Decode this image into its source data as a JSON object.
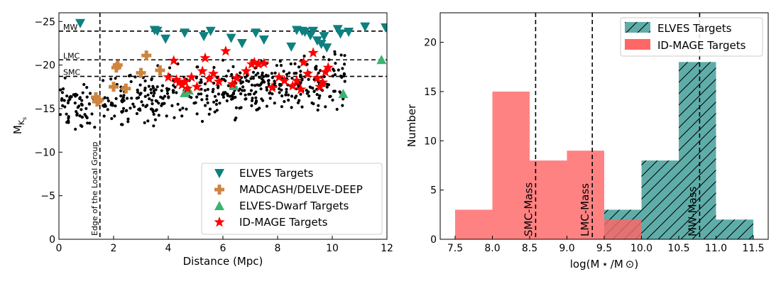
{
  "chart_data": [
    {
      "type": "scatter",
      "xlabel": "Distance (Mpc)",
      "ylabel": "M",
      "ylabel_subscript": "K",
      "ylabel_subsubscript": "s",
      "xlim": [
        0,
        12
      ],
      "ylim": [
        0,
        -26
      ],
      "xticks": [
        0,
        2,
        4,
        6,
        8,
        10,
        12
      ],
      "yticks": [
        0,
        -5,
        -10,
        -15,
        -20,
        -25
      ],
      "xtick_labels": [
        "0",
        "2",
        "4",
        "6",
        "8",
        "10",
        "12"
      ],
      "ytick_labels": [
        "0",
        "−5",
        "−10",
        "−15",
        "−20",
        "−25"
      ],
      "reference_lines": [
        {
          "label": "MW",
          "y": -23.9
        },
        {
          "label": "LMC",
          "y": -20.6
        },
        {
          "label": "SMC",
          "y": -18.7
        }
      ],
      "vline": {
        "x": 1.5,
        "label": "Edge of the Local Group"
      },
      "legend": [
        "ELVES Targets",
        "MADCASH/DELVE-DEEP",
        "ELVES-Dwarf Targets",
        "ID-MAGE Targets"
      ],
      "legend_position": "lower-right",
      "series": [
        {
          "name": "ELVES Targets",
          "marker": "triangle-down",
          "color": "#0e8080",
          "x": [
            0.78,
            3.5,
            3.6,
            3.9,
            4.6,
            5.3,
            5.55,
            6.3,
            6.7,
            7.2,
            7.5,
            8.5,
            8.7,
            8.9,
            9.0,
            9.2,
            9.3,
            9.45,
            9.6,
            9.7,
            9.8,
            10.2,
            10.3,
            10.6,
            11.2,
            11.95
          ],
          "y": [
            -24.8,
            -24.0,
            -23.9,
            -23.0,
            -23.7,
            -23.3,
            -23.9,
            -23.1,
            -22.5,
            -23.7,
            -22.9,
            -22.1,
            -24.0,
            -23.9,
            -23.8,
            -23.4,
            -23.9,
            -22.8,
            -22.4,
            -23.3,
            -22.0,
            -24.1,
            -23.6,
            -23.8,
            -24.4,
            -24.3
          ]
        },
        {
          "name": "MADCASH/DELVE-DEEP",
          "marker": "plus",
          "color": "#cd8540",
          "x": [
            1.35,
            1.4,
            1.45,
            2.0,
            2.1,
            2.15,
            2.45,
            3.0,
            3.2,
            3.7
          ],
          "y": [
            -16.3,
            -15.8,
            -16.0,
            -17.5,
            -19.7,
            -20.0,
            -17.3,
            -19.1,
            -21.1,
            -19.4
          ]
        },
        {
          "name": "ELVES-Dwarf Targets",
          "marker": "triangle-up",
          "color": "#3cb371",
          "x": [
            4.6,
            4.75,
            6.4,
            10.4,
            11.8
          ],
          "y": [
            -16.8,
            -17.1,
            -17.6,
            -16.7,
            -20.6
          ]
        },
        {
          "name": "ID-MAGE Targets",
          "marker": "star",
          "color": "#ff0000",
          "x": [
            4.0,
            4.2,
            4.3,
            4.4,
            4.5,
            4.6,
            4.7,
            4.85,
            5.05,
            5.25,
            5.35,
            5.5,
            5.65,
            5.85,
            6.1,
            6.35,
            6.5,
            6.85,
            7.05,
            7.15,
            7.3,
            7.5,
            7.8,
            8.05,
            8.25,
            8.55,
            8.7,
            8.85,
            8.95,
            9.1,
            9.3,
            9.45,
            9.55,
            9.65,
            9.75,
            9.85
          ],
          "y": [
            -18.6,
            -20.5,
            -18.3,
            -18.0,
            -17.7,
            -18.1,
            -17.3,
            -18.6,
            -17.5,
            -19.3,
            -20.8,
            -18.4,
            -19.0,
            -18.1,
            -21.6,
            -17.8,
            -18.5,
            -19.3,
            -20.1,
            -20.3,
            -20.1,
            -20.2,
            -17.4,
            -18.6,
            -18.2,
            -17.6,
            -18.2,
            -17.2,
            -20.3,
            -19.0,
            -21.4,
            -18.5,
            -17.5,
            -18.0,
            -19.2,
            -19.7
          ]
        }
      ]
    },
    {
      "type": "histogram",
      "xlabel": "log(M ⋆ /M ⊙)",
      "ylabel": "Number",
      "xlim": [
        7.3,
        11.7
      ],
      "ylim": [
        0,
        23
      ],
      "xticks": [
        7.5,
        8.0,
        8.5,
        9.0,
        9.5,
        10.0,
        10.5,
        11.0,
        11.5
      ],
      "yticks": [
        0,
        5,
        10,
        15,
        20
      ],
      "xtick_labels": [
        "7.5",
        "8.0",
        "8.5",
        "9.0",
        "9.5",
        "10.0",
        "10.5",
        "11.0",
        "11.5"
      ],
      "ytick_labels": [
        "0",
        "5",
        "10",
        "15",
        "20"
      ],
      "bin_edges": [
        7.5,
        8.0,
        8.5,
        9.0,
        9.5,
        10.0,
        10.5,
        11.0,
        11.5
      ],
      "series": [
        {
          "name": "ELVES Targets",
          "color": "#5fada9",
          "hatch": "/",
          "counts": [
            0,
            0,
            0,
            0,
            3,
            8,
            18,
            2
          ]
        },
        {
          "name": "ID-MAGE Targets",
          "color": "#ff6666",
          "counts": [
            3,
            15,
            8,
            9,
            2,
            0,
            0,
            0
          ]
        }
      ],
      "vlines": [
        {
          "label": "SMC-Mass",
          "x": 8.58
        },
        {
          "label": "LMC-Mass",
          "x": 9.34
        },
        {
          "label": "MW-Mass",
          "x": 10.78
        }
      ],
      "legend": [
        "ELVES Targets",
        "ID-MAGE Targets"
      ],
      "legend_position": "top-right"
    }
  ]
}
